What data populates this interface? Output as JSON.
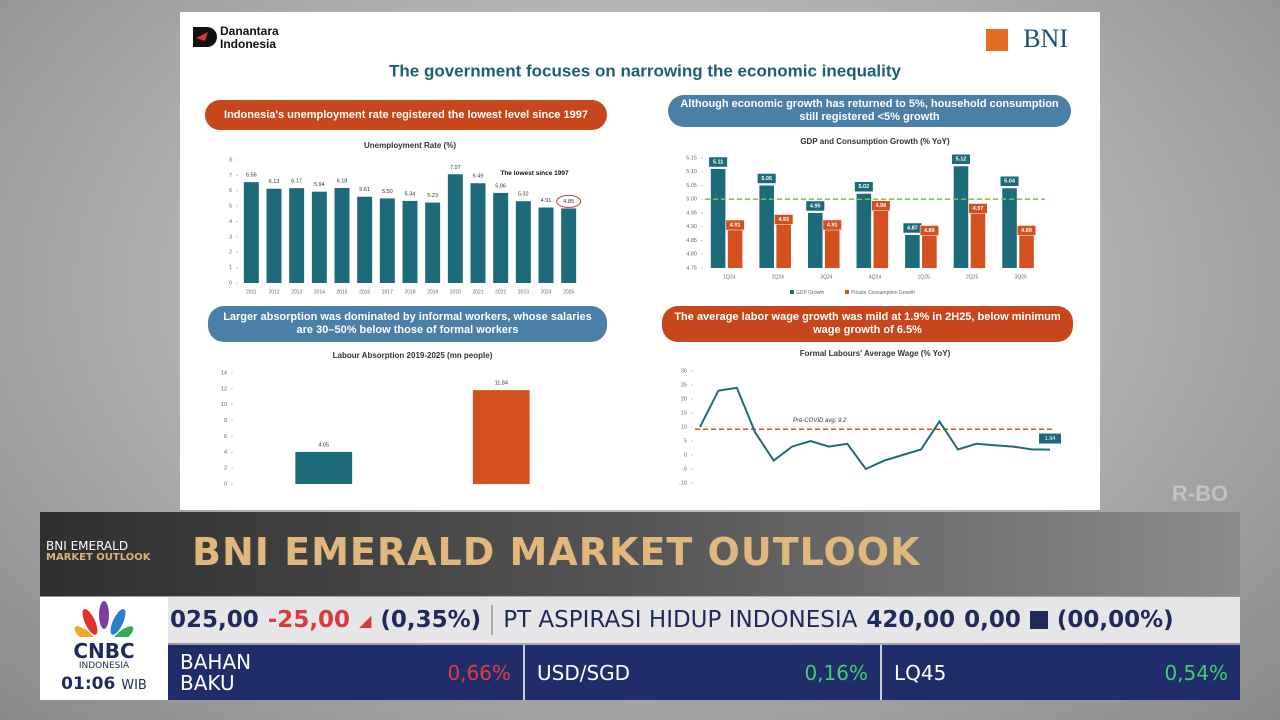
{
  "slide": {
    "logo_left": [
      "Danantara",
      "Indonesia"
    ],
    "logo_right": "BNI",
    "title": "The government focuses on narrowing the economic inequality"
  },
  "chart_data": [
    {
      "type": "bar",
      "headline": "Indonesia's unemployment rate registered the lowest level since 1997",
      "title": "Unemployment Rate (%)",
      "categories": [
        "2011",
        "2012",
        "2013",
        "2014",
        "2015",
        "2016",
        "2017",
        "2018",
        "2019",
        "2020",
        "2021",
        "2022",
        "2023",
        "2024",
        "2025"
      ],
      "values": [
        6.56,
        6.13,
        6.17,
        5.94,
        6.18,
        5.61,
        5.5,
        5.34,
        5.23,
        7.07,
        6.49,
        5.86,
        5.32,
        4.91,
        4.85
      ],
      "value_labels": [
        "6.56",
        "6.13",
        "6.17",
        "5.94",
        "6.18",
        "5.61",
        "5.50",
        "5.34",
        "5.23",
        "7.07",
        "6.49",
        "5.86",
        "5.32",
        "4.91",
        "4.85"
      ],
      "color": "#1d6b7a",
      "ylim": [
        0,
        8
      ],
      "yticks": [
        0,
        1,
        2,
        3,
        4,
        5,
        6,
        7,
        8
      ],
      "annotation": "The lowest since 1997"
    },
    {
      "type": "bar",
      "headline": "Although economic growth has returned to 5%, household consumption still registered <5% growth",
      "title": "GDP and Consumption Growth (% YoY)",
      "categories": [
        "1Q24",
        "2Q24",
        "3Q24",
        "4Q24",
        "1Q25",
        "2Q25",
        "3Q25"
      ],
      "series": [
        {
          "name": "GDP Growth",
          "color": "#1d6b7a",
          "values": [
            5.11,
            5.05,
            4.95,
            5.02,
            4.87,
            5.12,
            5.04
          ]
        },
        {
          "name": "Private Consumption Growth",
          "color": "#d4501e",
          "values": [
            4.91,
            4.93,
            4.91,
            4.98,
            4.89,
            4.97,
            4.89
          ]
        }
      ],
      "ylim": [
        4.75,
        5.15
      ],
      "yticks": [
        {
          "value": 4.75,
          "label": "4.75"
        },
        {
          "value": 4.8,
          "label": "4.80"
        },
        {
          "value": 4.85,
          "label": "4.85"
        },
        {
          "value": 4.9,
          "label": "4.90"
        },
        {
          "value": 4.95,
          "label": "4.95"
        },
        {
          "value": 5,
          "label": "5.00"
        },
        {
          "value": 5.05,
          "label": "5.05"
        },
        {
          "value": 5.1,
          "label": "5.10"
        },
        {
          "value": 5.15,
          "label": "5.15"
        }
      ],
      "reference_line": 5,
      "reference_color": "#7cc443"
    },
    {
      "type": "bar",
      "headline": "Larger absorption was dominated by informal workers, whose salaries are 30–50% below those of formal workers",
      "title": "Labour Absorption 2019-2025 (mn people)",
      "values": [
        4.05,
        11.84
      ],
      "value_labels": [
        "4.05",
        "11.84"
      ],
      "colors": [
        "#1d6b7a",
        "#d4501e"
      ],
      "ylim": [
        0,
        14
      ],
      "yticks": [
        0,
        2,
        4,
        6,
        8,
        10,
        12,
        14
      ]
    },
    {
      "type": "line",
      "headline": "The average labor wage growth was mild at 1.9% in 2H25, below minimum wage growth of 6.5%",
      "title": "Formal Labours' Average Wage (% YoY)",
      "values": [
        10,
        23,
        24,
        8,
        -2,
        3,
        5,
        3,
        4,
        -5,
        -2,
        0,
        2,
        12,
        2,
        4,
        3.5,
        3,
        2,
        1.94
      ],
      "color": "#1d6b7a",
      "ylim": [
        -10,
        30
      ],
      "yticks": [
        -10,
        -5,
        0,
        5,
        10,
        15,
        20,
        25,
        30
      ],
      "reference_line": 9.2,
      "reference_color": "#d4501e",
      "annotation": "Pre-COVID avg: 9.2"
    }
  ],
  "watermark": "R-BO",
  "lower_third": {
    "badge": [
      "BNI EMERALD",
      "MARKET OUTLOOK"
    ],
    "title": "BNI EMERALD MARKET OUTLOOK"
  },
  "ticker": [
    "025,00",
    "-25,00",
    "(0,35%)",
    "PT ASPIRASI HIDUP INDONESIA",
    "420,00",
    "0,00",
    "(00,00%)"
  ],
  "network": {
    "logo": "CNBC",
    "region": "INDONESIA",
    "time": "01:06",
    "zone": "WIB"
  },
  "market": [
    {
      "name": "BAHAN BAKU",
      "change": "0,66%"
    },
    {
      "name": "USD/SGD",
      "change": "0,16%"
    },
    {
      "name": "LQ45",
      "change": "0,54%"
    }
  ]
}
